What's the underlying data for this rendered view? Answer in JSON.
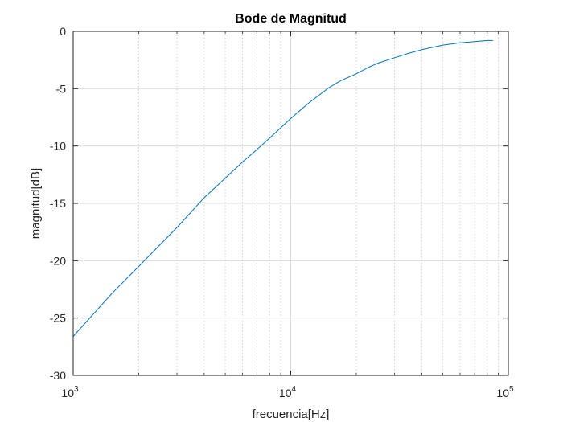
{
  "chart_data": {
    "type": "line",
    "title": "Bode de Magnitud",
    "xlabel": "frecuencia[Hz]",
    "ylabel": "magnitud[dB]",
    "xscale": "log",
    "xlim": [
      1000,
      100000
    ],
    "ylim": [
      -30,
      0
    ],
    "grid": true,
    "legend": "none",
    "x_ticks": [
      {
        "value": 1000,
        "base": "10",
        "exp": "3"
      },
      {
        "value": 10000,
        "base": "10",
        "exp": "4"
      },
      {
        "value": 100000,
        "base": "10",
        "exp": "5"
      }
    ],
    "y_ticks": [
      {
        "value": 0,
        "label": "0"
      },
      {
        "value": -5,
        "label": "-5"
      },
      {
        "value": -10,
        "label": "-10"
      },
      {
        "value": -15,
        "label": "-15"
      },
      {
        "value": -20,
        "label": "-20"
      },
      {
        "value": -25,
        "label": "-25"
      },
      {
        "value": -30,
        "label": "-30"
      }
    ],
    "series": [
      {
        "color": "#0072BD",
        "x": [
          1000,
          1500,
          2000,
          3000,
          4000,
          5000,
          6000,
          7000,
          8000,
          10000,
          12000,
          15000,
          17000,
          20000,
          23000,
          25000,
          30000,
          35000,
          40000,
          50000,
          60000,
          70000,
          80000,
          85000
        ],
        "y": [
          -26.6,
          -22.9,
          -20.5,
          -17.1,
          -14.5,
          -12.8,
          -11.4,
          -10.3,
          -9.3,
          -7.6,
          -6.3,
          -4.9,
          -4.3,
          -3.7,
          -3.1,
          -2.8,
          -2.3,
          -1.9,
          -1.6,
          -1.2,
          -1.0,
          -0.9,
          -0.8,
          -0.8
        ]
      }
    ]
  }
}
